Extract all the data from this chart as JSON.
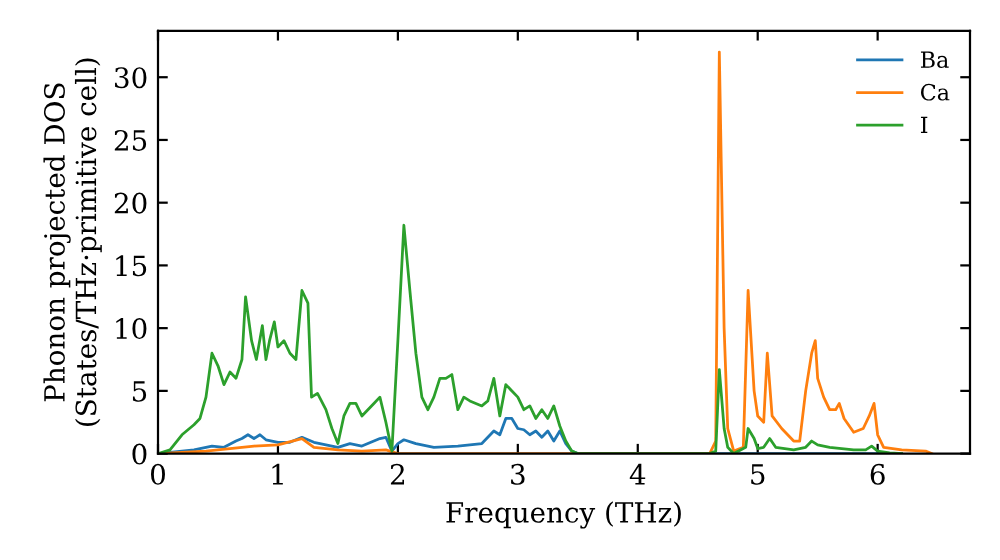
{
  "chart_data": {
    "type": "line",
    "xlabel": "Frequency (THz)",
    "ylabel": "Phonon projected DOS\n(States/THz·primitive cell)",
    "xlim": [
      0,
      6.77
    ],
    "ylim": [
      0,
      33.7
    ],
    "xticks": [
      0,
      1,
      2,
      3,
      4,
      5,
      6
    ],
    "yticks": [
      0,
      5,
      10,
      15,
      20,
      25,
      30
    ],
    "legend": "top right",
    "grid": false,
    "series": [
      {
        "name": "Ba",
        "color": "#1f77b4",
        "x": [
          0,
          0.3,
          0.45,
          0.55,
          0.65,
          0.7,
          0.75,
          0.8,
          0.85,
          0.9,
          1.0,
          1.1,
          1.2,
          1.3,
          1.4,
          1.5,
          1.6,
          1.7,
          1.85,
          1.9,
          1.95,
          2.0,
          2.05,
          2.15,
          2.3,
          2.5,
          2.7,
          2.8,
          2.85,
          2.9,
          2.95,
          3.0,
          3.05,
          3.1,
          3.15,
          3.2,
          3.25,
          3.3,
          3.35,
          3.4,
          3.45,
          3.5,
          6.2
        ],
        "values": [
          0,
          0.3,
          0.6,
          0.5,
          1,
          1.2,
          1.5,
          1.2,
          1.5,
          1.1,
          0.9,
          0.9,
          1.3,
          0.9,
          0.7,
          0.5,
          0.8,
          0.6,
          1.2,
          1.3,
          0.2,
          0.8,
          1.1,
          0.8,
          0.5,
          0.6,
          0.8,
          1.8,
          1.5,
          2.8,
          2.8,
          2.0,
          1.9,
          1.5,
          1.8,
          1.3,
          1.8,
          1.0,
          1.8,
          0.8,
          0.2,
          0,
          0
        ]
      },
      {
        "name": "Ca",
        "color": "#ff7f0e",
        "x": [
          0,
          0.4,
          0.6,
          0.8,
          1.0,
          1.2,
          1.3,
          1.5,
          1.7,
          1.9,
          2.0,
          4.6,
          4.65,
          4.68,
          4.72,
          4.75,
          4.8,
          4.88,
          4.92,
          4.97,
          5.0,
          5.05,
          5.08,
          5.12,
          5.2,
          5.3,
          5.35,
          5.4,
          5.45,
          5.48,
          5.5,
          5.55,
          5.6,
          5.65,
          5.68,
          5.72,
          5.8,
          5.88,
          5.93,
          5.97,
          6.0,
          6.05,
          6.2,
          6.4,
          6.45
        ],
        "values": [
          0,
          0.2,
          0.4,
          0.6,
          0.7,
          1.2,
          0.5,
          0.3,
          0.2,
          0.3,
          0,
          0,
          1,
          32,
          10,
          2,
          0.2,
          0.5,
          13,
          5,
          3,
          2.5,
          8,
          3,
          2,
          1,
          1,
          5,
          8,
          9,
          6,
          4.5,
          3.5,
          3.5,
          4,
          2.8,
          1.7,
          2,
          3,
          4,
          1.5,
          0.5,
          0.3,
          0.2,
          0
        ]
      },
      {
        "name": "I",
        "color": "#2ca02c",
        "x": [
          0,
          0.1,
          0.2,
          0.3,
          0.35,
          0.4,
          0.45,
          0.5,
          0.55,
          0.6,
          0.65,
          0.7,
          0.73,
          0.78,
          0.82,
          0.87,
          0.9,
          0.93,
          0.97,
          1.0,
          1.05,
          1.1,
          1.15,
          1.2,
          1.25,
          1.28,
          1.33,
          1.4,
          1.45,
          1.5,
          1.55,
          1.6,
          1.65,
          1.7,
          1.8,
          1.85,
          1.9,
          1.95,
          2.0,
          2.05,
          2.1,
          2.15,
          2.2,
          2.25,
          2.3,
          2.35,
          2.4,
          2.45,
          2.5,
          2.55,
          2.6,
          2.7,
          2.75,
          2.8,
          2.85,
          2.9,
          3.0,
          3.05,
          3.1,
          3.15,
          3.2,
          3.25,
          3.3,
          3.35,
          3.4,
          3.45,
          3.5,
          4.6,
          4.65,
          4.68,
          4.72,
          4.75,
          4.8,
          4.9,
          4.92,
          4.97,
          5.0,
          5.05,
          5.1,
          5.15,
          5.3,
          5.4,
          5.45,
          5.5,
          5.6,
          5.8,
          5.9,
          5.95,
          6.0,
          6.1,
          6.2
        ],
        "values": [
          0,
          0.3,
          1.5,
          2.3,
          2.8,
          4.5,
          8,
          7,
          5.5,
          6.5,
          6,
          7.5,
          12.5,
          9,
          7.5,
          10.2,
          7.5,
          9,
          10.5,
          8.5,
          9,
          8,
          7.5,
          13,
          12,
          4.5,
          4.8,
          3.5,
          2,
          0.8,
          3,
          4,
          4,
          3,
          4,
          4.5,
          2.5,
          0.2,
          9,
          18.2,
          13,
          8,
          4.5,
          3.5,
          4.5,
          6,
          6,
          6.3,
          3.5,
          4.5,
          4.2,
          3.8,
          4.2,
          6,
          3,
          5.5,
          4.5,
          3.5,
          3.8,
          2.8,
          3.5,
          2.8,
          3.8,
          2.2,
          1.0,
          0.2,
          0,
          0,
          0.2,
          6.7,
          2,
          0.5,
          0,
          0.5,
          2,
          1.2,
          0.4,
          0.5,
          1.2,
          0.5,
          0.3,
          0.5,
          1,
          0.7,
          0.5,
          0.3,
          0.3,
          0.6,
          0.2,
          0.05,
          0
        ]
      }
    ]
  }
}
